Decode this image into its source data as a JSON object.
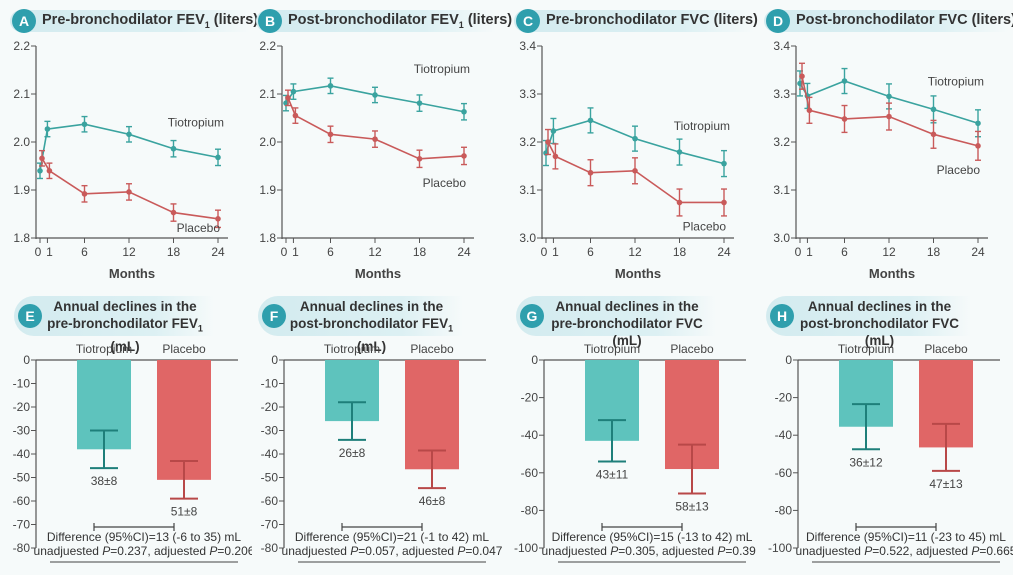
{
  "colors": {
    "tiotropium": "#3aa39f",
    "placebo": "#c95a5a",
    "bar_tiotropium": "#5ec3bd",
    "bar_placebo": "#e06666",
    "err_tiotropium": "#1e7f7a",
    "err_placebo": "#b84848",
    "badge": "#2f9fad"
  },
  "chart_data": [
    {
      "id": "A",
      "type": "line",
      "title": "Pre-bronchodilator FEV",
      "title_sub": "1",
      "title_suffix": " (liters)",
      "xlabel": "Months",
      "ylabel": "",
      "x": [
        0,
        1,
        6,
        12,
        18,
        24
      ],
      "xticks": [
        "0",
        "1",
        "6",
        "12",
        "18",
        "24"
      ],
      "ylim": [
        1.8,
        2.2
      ],
      "yticks": [
        "1.8",
        "1.9",
        "2.0",
        "2.1",
        "2.2"
      ],
      "series": [
        {
          "name": "Tiotropium",
          "values": [
            1.94,
            2.027,
            2.037,
            2.016,
            1.986,
            1.968
          ],
          "err": [
            0.016,
            0.016,
            0.016,
            0.016,
            0.017,
            0.017
          ]
        },
        {
          "name": "Placebo",
          "values": [
            1.966,
            1.94,
            1.892,
            1.896,
            1.853,
            1.84
          ],
          "err": [
            0.016,
            0.016,
            0.017,
            0.017,
            0.018,
            0.018
          ]
        }
      ],
      "labels": {
        "tiotropium": "Tiotropium",
        "placebo": "Placebo"
      }
    },
    {
      "id": "B",
      "type": "line",
      "title": "Post-bronchodilator FEV",
      "title_sub": "1",
      "title_suffix": " (liters)",
      "xlabel": "Months",
      "x": [
        0,
        1,
        6,
        12,
        18,
        24
      ],
      "xticks": [
        "0",
        "1",
        "6",
        "12",
        "18",
        "24"
      ],
      "ylim": [
        1.8,
        2.2
      ],
      "yticks": [
        "1.8",
        "1.9",
        "2.0",
        "2.1",
        "2.2"
      ],
      "series": [
        {
          "name": "Tiotropium",
          "values": [
            2.081,
            2.105,
            2.117,
            2.098,
            2.081,
            2.063
          ],
          "err": [
            0.016,
            0.016,
            0.016,
            0.016,
            0.017,
            0.017
          ]
        },
        {
          "name": "Placebo",
          "values": [
            2.092,
            2.055,
            2.016,
            2.006,
            1.965,
            1.971
          ],
          "err": [
            0.016,
            0.016,
            0.017,
            0.017,
            0.018,
            0.018
          ]
        }
      ],
      "labels": {
        "tiotropium": "Tiotropium",
        "placebo": "Placebo"
      }
    },
    {
      "id": "C",
      "type": "line",
      "title": "Pre-bronchodilator FVC (liters)",
      "title_sub": "",
      "title_suffix": "",
      "xlabel": "Months",
      "x": [
        0,
        1,
        6,
        12,
        18,
        24
      ],
      "xticks": [
        "0",
        "1",
        "6",
        "12",
        "18",
        "24"
      ],
      "ylim": [
        3.0,
        3.4
      ],
      "yticks": [
        "3.0",
        "3.1",
        "3.2",
        "3.3",
        "3.4"
      ],
      "series": [
        {
          "name": "Tiotropium",
          "values": [
            3.177,
            3.223,
            3.245,
            3.207,
            3.179,
            3.155
          ],
          "err": [
            0.026,
            0.026,
            0.026,
            0.026,
            0.027,
            0.027
          ]
        },
        {
          "name": "Placebo",
          "values": [
            3.2,
            3.17,
            3.136,
            3.14,
            3.074,
            3.074
          ],
          "err": [
            0.026,
            0.026,
            0.027,
            0.027,
            0.028,
            0.028
          ]
        }
      ],
      "labels": {
        "tiotropium": "Tiotropium",
        "placebo": "Placebo"
      }
    },
    {
      "id": "D",
      "type": "line",
      "title": "Post-bronchodilator FVC (liters)",
      "title_sub": "",
      "title_suffix": "",
      "xlabel": "Months",
      "x": [
        0,
        1,
        6,
        12,
        18,
        24
      ],
      "xticks": [
        "0",
        "1",
        "6",
        "12",
        "18",
        "24"
      ],
      "ylim": [
        3.0,
        3.4
      ],
      "yticks": [
        "3.0",
        "3.1",
        "3.2",
        "3.3",
        "3.4"
      ],
      "series": [
        {
          "name": "Tiotropium",
          "values": [
            3.322,
            3.296,
            3.327,
            3.295,
            3.268,
            3.239
          ],
          "err": [
            0.026,
            0.026,
            0.026,
            0.026,
            0.028,
            0.028
          ]
        },
        {
          "name": "Placebo",
          "values": [
            3.337,
            3.266,
            3.248,
            3.253,
            3.216,
            3.192
          ],
          "err": [
            0.027,
            0.027,
            0.028,
            0.028,
            0.029,
            0.03
          ]
        }
      ],
      "labels": {
        "tiotropium": "Tiotropium",
        "placebo": "Placebo"
      }
    },
    {
      "id": "E",
      "type": "bar",
      "title_line1": "Annual declines in the",
      "title_line2": "pre-bronchodilator FEV",
      "title_sub": "1",
      "title_suffix": " (mL)",
      "categories": [
        "Tiotropium",
        "Placebo"
      ],
      "values": [
        -38,
        -51
      ],
      "err": [
        8,
        8
      ],
      "value_labels": [
        "38±8",
        "51±8"
      ],
      "ylim": [
        -80,
        0
      ],
      "yticks": [
        "0",
        "-10",
        "-20",
        "-30",
        "-40",
        "-50",
        "-60",
        "-70",
        "-80"
      ],
      "ytick_values": [
        0,
        -10,
        -20,
        -30,
        -40,
        -50,
        -60,
        -70,
        -80
      ],
      "difference": "Difference (95%CI)=13 (-6 to 35) mL",
      "p_unadj_prefix": "unadjuested ",
      "p_unadj": "=0.237, adjuested ",
      "p_adj": "=0.206"
    },
    {
      "id": "F",
      "type": "bar",
      "title_line1": "Annual declines in the",
      "title_line2": "post-bronchodilator FEV",
      "title_sub": "1",
      "title_suffix": " (mL)",
      "categories": [
        "Tiotropium",
        "Placebo"
      ],
      "values": [
        -26,
        -46.5
      ],
      "err": [
        8,
        8
      ],
      "value_labels": [
        "26±8",
        "46±8"
      ],
      "ylim": [
        -80,
        0
      ],
      "yticks": [
        "0",
        "-10",
        "-20",
        "-30",
        "-40",
        "-50",
        "-60",
        "-70",
        "-80"
      ],
      "ytick_values": [
        0,
        -10,
        -20,
        -30,
        -40,
        -50,
        -60,
        -70,
        -80
      ],
      "difference": "Difference (95%CI)=21 (-1 to 42) mL",
      "p_unadj_prefix": "unadjuested ",
      "p_unadj": "=0.057, adjuested ",
      "p_adj": "=0.047"
    },
    {
      "id": "G",
      "type": "bar",
      "title_line1": "Annual declines in the",
      "title_line2": "pre-bronchodilator FVC (mL)",
      "title_sub": "",
      "title_suffix": "",
      "categories": [
        "Tiotropium",
        "Placebo"
      ],
      "values": [
        -43,
        -58
      ],
      "err": [
        11,
        13
      ],
      "value_labels": [
        "43±11",
        "58±13"
      ],
      "ylim": [
        -100,
        0
      ],
      "yticks": [
        "0",
        "-20",
        "-40",
        "-60",
        "-80",
        "-100"
      ],
      "ytick_values": [
        0,
        -20,
        -40,
        -60,
        -80,
        -100
      ],
      "difference": "Difference (95%CI)=15 (-13 to 42) mL",
      "p_unadj_prefix": "unadjuested ",
      "p_unadj": "=0.305, adjuested ",
      "p_adj": "=0.395"
    },
    {
      "id": "H",
      "type": "bar",
      "title_line1": "Annual declines in the",
      "title_line2": "post-bronchodilator FVC (mL)",
      "title_sub": "",
      "title_suffix": "",
      "categories": [
        "Tiotropium",
        "Placebo"
      ],
      "values": [
        -35.5,
        -46.5
      ],
      "err": [
        12,
        12.5
      ],
      "value_labels": [
        "36±12",
        "47±13"
      ],
      "ylim": [
        -100,
        0
      ],
      "yticks": [
        "0",
        "-20",
        "-40",
        "-60",
        "-80",
        "-100"
      ],
      "ytick_values": [
        0,
        -20,
        -40,
        -60,
        -80,
        -100
      ],
      "difference": "Difference (95%CI)=11 (-23 to 45) mL",
      "p_unadj_prefix": "unadjuested ",
      "p_unadj": "=0.522, adjuested ",
      "p_adj": "=0.665"
    }
  ],
  "p_symbol": "P"
}
